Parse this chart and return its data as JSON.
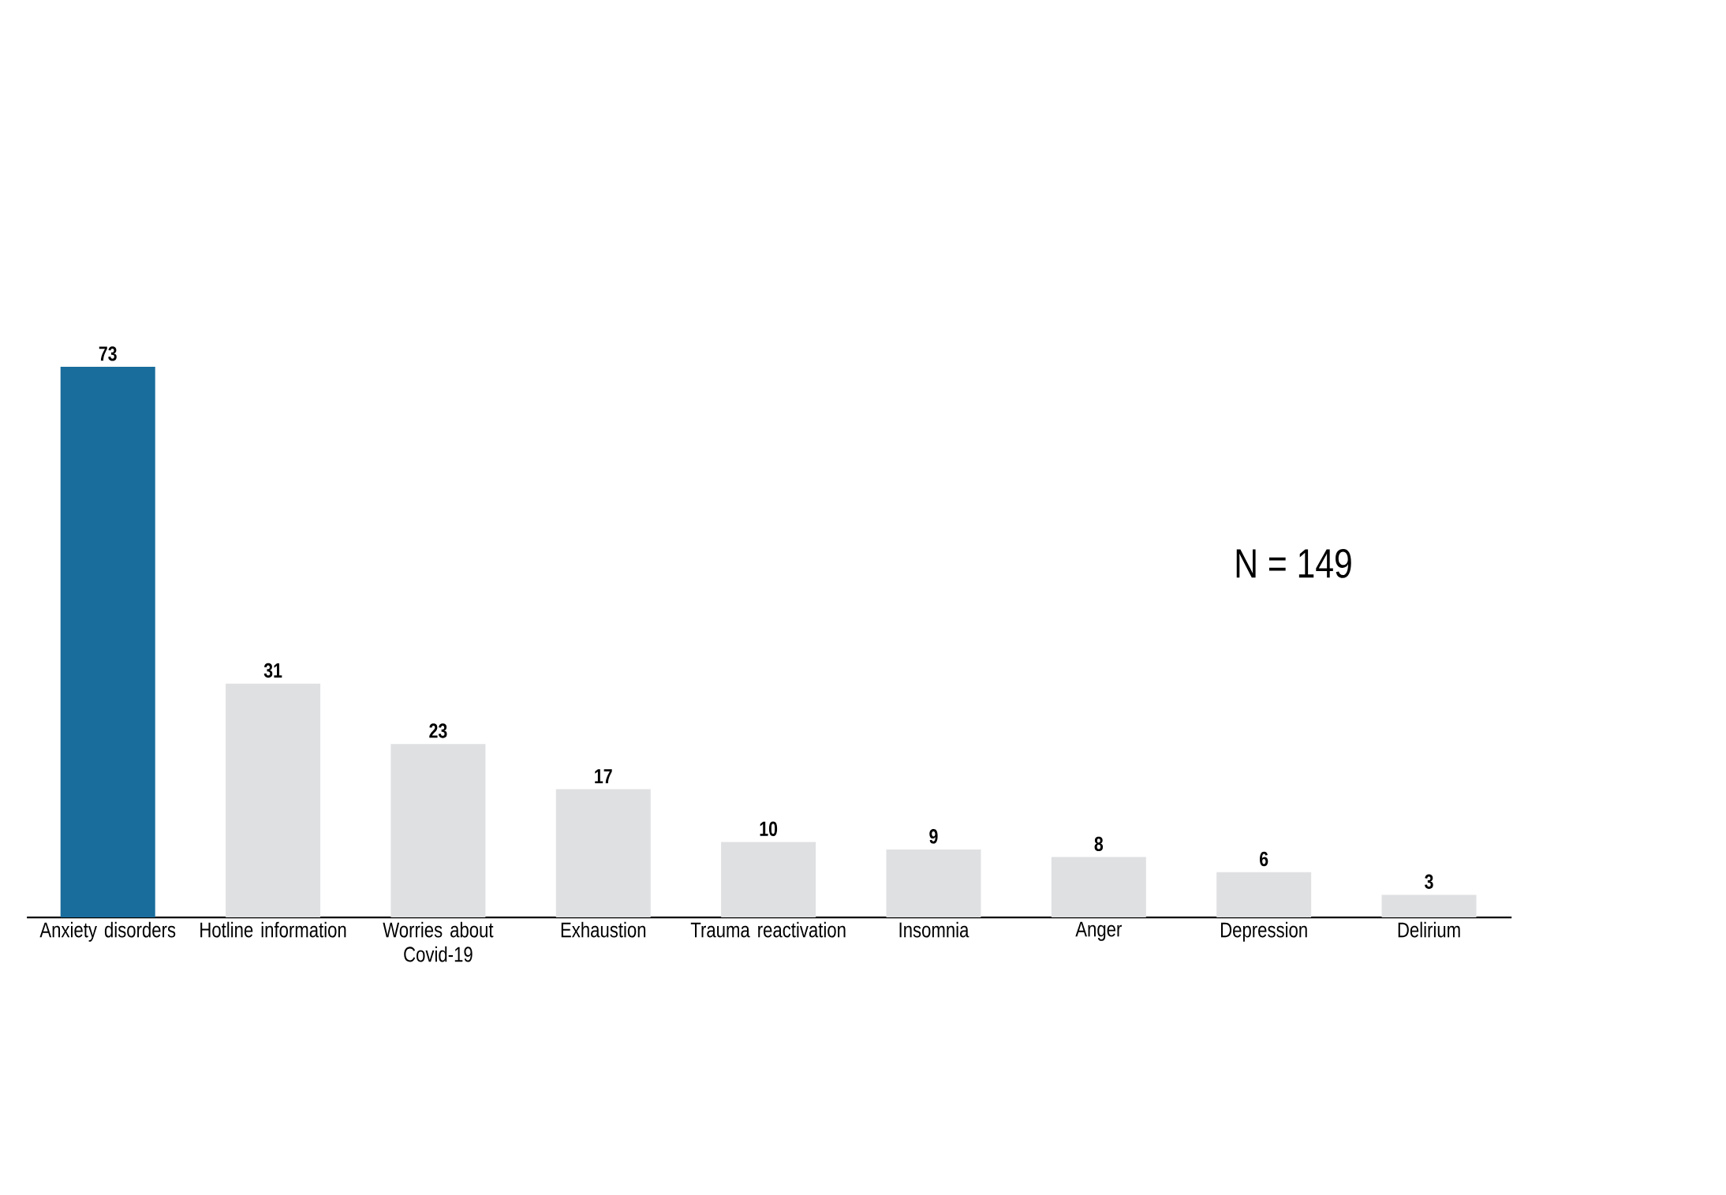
{
  "chart_data": {
    "type": "bar",
    "categories": [
      "Anxiety disorders",
      "Hotline information",
      "Worries about Covid-19",
      "Exhaustion",
      "Trauma reactivation",
      "Insomnia",
      "Anger",
      "Depression",
      "Delirium"
    ],
    "values": [
      73,
      31,
      23,
      17,
      10,
      9,
      8,
      6,
      3
    ],
    "colors": [
      "#196d9c",
      "#dfe0e2",
      "#dfe0e2",
      "#dfe0e2",
      "#dfe0e2",
      "#dfe0e2",
      "#dfe0e2",
      "#dfe0e2",
      "#dfe0e2"
    ],
    "data_labels": true,
    "annotations": [
      "N = 149"
    ]
  }
}
